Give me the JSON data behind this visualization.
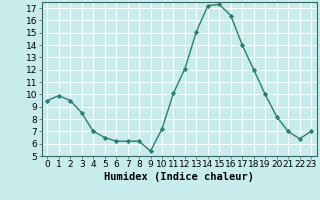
{
  "x": [
    0,
    1,
    2,
    3,
    4,
    5,
    6,
    7,
    8,
    9,
    10,
    11,
    12,
    13,
    14,
    15,
    16,
    17,
    18,
    19,
    20,
    21,
    22,
    23
  ],
  "y": [
    9.5,
    9.9,
    9.5,
    8.5,
    7.0,
    6.5,
    6.2,
    6.2,
    6.2,
    5.4,
    7.2,
    10.1,
    12.1,
    15.1,
    17.2,
    17.3,
    16.4,
    14.0,
    12.0,
    10.0,
    8.2,
    7.0,
    6.4,
    7.0
  ],
  "line_color": "#2e7d72",
  "marker": "D",
  "marker_size": 2.2,
  "bg_color": "#c8ecec",
  "grid_color": "#ffffff",
  "xlabel": "Humidex (Indice chaleur)",
  "ylim": [
    5,
    17.5
  ],
  "xlim": [
    -0.5,
    23.5
  ],
  "yticks": [
    5,
    6,
    7,
    8,
    9,
    10,
    11,
    12,
    13,
    14,
    15,
    16,
    17
  ],
  "xticks": [
    0,
    1,
    2,
    3,
    4,
    5,
    6,
    7,
    8,
    9,
    10,
    11,
    12,
    13,
    14,
    15,
    16,
    17,
    18,
    19,
    20,
    21,
    22,
    23
  ],
  "tick_label_fontsize": 6.5,
  "xlabel_fontsize": 7.5
}
